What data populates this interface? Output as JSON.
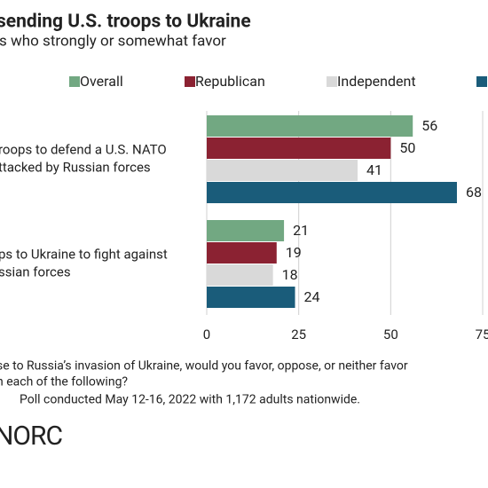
{
  "chart_data": {
    "type": "bar",
    "orientation": "horizontal",
    "title": "sending U.S. troops to Ukraine",
    "subtitle": "s who strongly or somewhat favor",
    "categories": [
      [
        "roops to defend a U.S. NATO",
        "ttacked by Russian forces"
      ],
      [
        "ps to Ukraine to fight against",
        "ssian forces"
      ]
    ],
    "series": [
      {
        "name": "Overall",
        "color": "#72a882",
        "values": [
          56,
          21
        ]
      },
      {
        "name": "Republican",
        "color": "#8b2232",
        "values": [
          50,
          19
        ]
      },
      {
        "name": "Independent",
        "color": "#d9d9d9",
        "values": [
          41,
          18
        ]
      },
      {
        "color": "#1a5c7a",
        "values": [
          68,
          24
        ]
      }
    ],
    "xlim": [
      0,
      75
    ],
    "xticks": [
      0,
      25,
      50,
      75
    ],
    "grid": true,
    "notes": [
      "se to Russia’s invasion of Ukraine, would you favor, oppose, or neither favor",
      "n each of the following?",
      "Poll conducted May 12-16, 2022 with 1,172 adults nationwide."
    ],
    "logo": "NORC"
  }
}
